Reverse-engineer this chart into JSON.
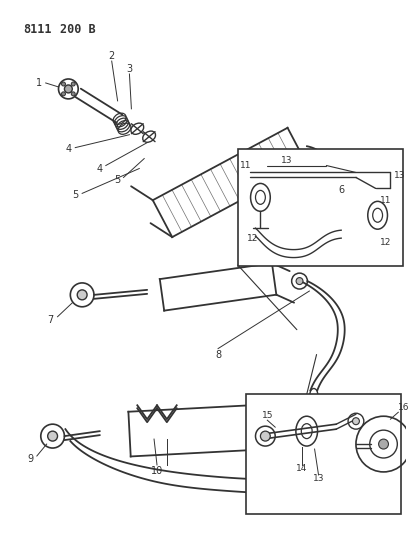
{
  "title": "8111 200 B",
  "bg_color": "#ffffff",
  "line_color": "#333333",
  "fig_width": 4.11,
  "fig_height": 5.33,
  "dpi": 100
}
